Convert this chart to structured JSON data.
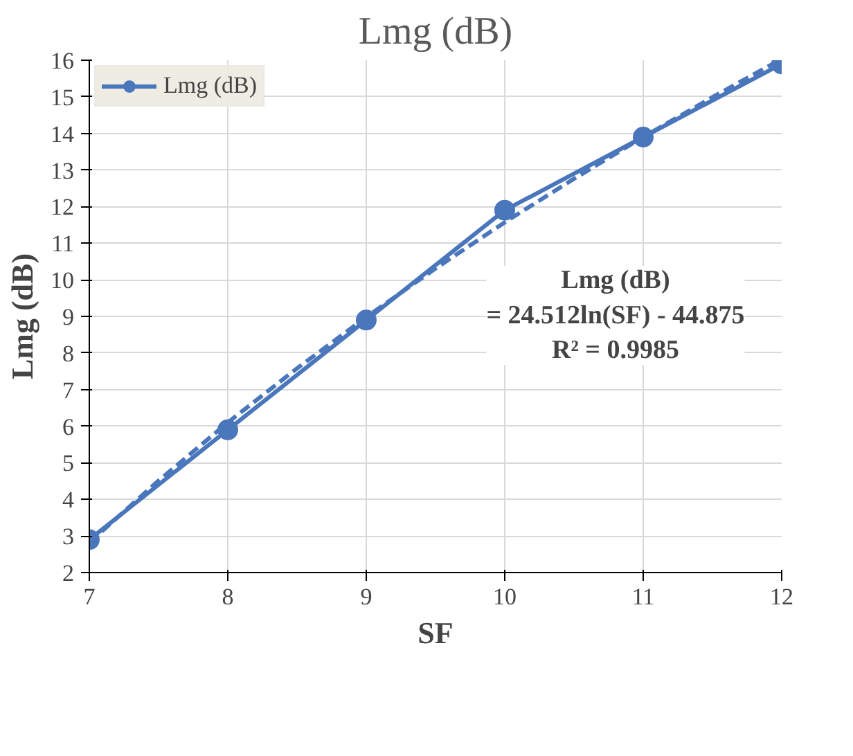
{
  "chart_data": {
    "type": "line",
    "title": "Lmg (dB)",
    "xlabel": "SF",
    "ylabel": "Lmg (dB)",
    "x": [
      7,
      8,
      9,
      10,
      11,
      12
    ],
    "series": [
      {
        "name": "Lmg (dB)",
        "color": "#4a76bb",
        "values": [
          2.9,
          5.9,
          8.9,
          11.9,
          13.9,
          15.9
        ],
        "marker": "circle",
        "line_style": "solid"
      },
      {
        "type": "line",
        "color": "#4a76bb",
        "x": [
          7,
          7.5,
          8,
          8.5,
          9,
          9.5,
          10,
          10.5,
          11,
          11.5,
          11.95
        ],
        "values": [
          2.82,
          4.51,
          6.1,
          7.58,
          8.98,
          10.31,
          11.57,
          12.76,
          13.9,
          14.99,
          15.93
        ],
        "marker": "none",
        "line_style": "dashed"
      }
    ],
    "xlim": [
      7,
      12
    ],
    "xticks": [
      7,
      8,
      9,
      10,
      11,
      12
    ],
    "ylim": [
      2,
      16
    ],
    "yticks": [
      2,
      3,
      4,
      5,
      6,
      7,
      8,
      9,
      10,
      11,
      12,
      13,
      14,
      15,
      16
    ],
    "grid": true,
    "legend": "top left",
    "annotations": [
      "Lmg (dB)\n= 24.512ln(SF) - 44.875\nR² = 0.9985"
    ]
  }
}
